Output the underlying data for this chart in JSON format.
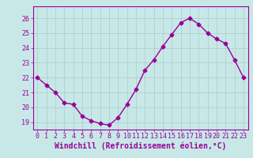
{
  "x": [
    0,
    1,
    2,
    3,
    4,
    5,
    6,
    7,
    8,
    9,
    10,
    11,
    12,
    13,
    14,
    15,
    16,
    17,
    18,
    19,
    20,
    21,
    22,
    23
  ],
  "y": [
    22.0,
    21.5,
    21.0,
    20.3,
    20.2,
    19.4,
    19.1,
    18.9,
    18.8,
    19.3,
    20.2,
    21.2,
    22.5,
    23.2,
    24.1,
    24.9,
    25.7,
    26.0,
    25.6,
    25.0,
    24.6,
    24.3,
    23.2,
    22.0
  ],
  "color": "#990099",
  "bg_color": "#c8e8e8",
  "grid_color": "#aacccc",
  "xlabel": "Windchill (Refroidissement éolien,°C)",
  "ylim": [
    18.5,
    26.8
  ],
  "yticks": [
    19,
    20,
    21,
    22,
    23,
    24,
    25,
    26
  ],
  "xticks": [
    0,
    1,
    2,
    3,
    4,
    5,
    6,
    7,
    8,
    9,
    10,
    11,
    12,
    13,
    14,
    15,
    16,
    17,
    18,
    19,
    20,
    21,
    22,
    23
  ],
  "marker": "D",
  "markersize": 2.5,
  "linewidth": 1.0,
  "xlabel_fontsize": 7.0,
  "tick_fontsize": 6.0
}
